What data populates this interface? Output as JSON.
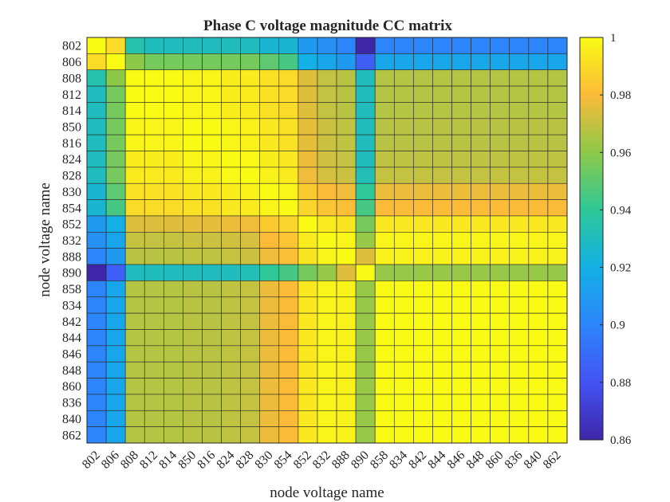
{
  "chart_data": {
    "type": "heatmap",
    "title": "Phase C voltage magnitude CC matrix",
    "xlabel": "node voltage name",
    "ylabel": "node voltage name",
    "labels": [
      "802",
      "806",
      "808",
      "812",
      "814",
      "850",
      "816",
      "824",
      "828",
      "830",
      "854",
      "852",
      "832",
      "888",
      "890",
      "858",
      "834",
      "842",
      "844",
      "846",
      "848",
      "860",
      "836",
      "840",
      "862"
    ],
    "colorbar": {
      "min": 0.86,
      "max": 1,
      "ticks": [
        "0.86",
        "0.88",
        "0.9",
        "0.92",
        "0.94",
        "0.96",
        "0.98",
        "1"
      ]
    },
    "colormap": "parula",
    "values": [
      [
        1,
        0.99,
        0.935,
        0.93,
        0.93,
        0.93,
        0.93,
        0.93,
        0.93,
        0.925,
        0.925,
        0.91,
        0.905,
        0.9,
        0.86,
        0.9,
        0.9,
        0.9,
        0.9,
        0.9,
        0.9,
        0.9,
        0.9,
        0.9,
        0.9
      ],
      [
        0.99,
        1,
        0.96,
        0.955,
        0.955,
        0.955,
        0.955,
        0.955,
        0.955,
        0.95,
        0.945,
        0.92,
        0.915,
        0.91,
        0.885,
        0.915,
        0.915,
        0.915,
        0.915,
        0.915,
        0.915,
        0.915,
        0.915,
        0.915,
        0.915
      ],
      [
        0.935,
        0.96,
        1,
        1,
        1,
        0.998,
        0.998,
        0.996,
        0.995,
        0.992,
        0.99,
        0.975,
        0.97,
        0.968,
        0.93,
        0.967,
        0.967,
        0.967,
        0.967,
        0.967,
        0.967,
        0.967,
        0.967,
        0.967,
        0.967
      ],
      [
        0.93,
        0.955,
        1,
        1,
        1,
        0.998,
        0.998,
        0.996,
        0.995,
        0.992,
        0.99,
        0.975,
        0.97,
        0.968,
        0.93,
        0.967,
        0.967,
        0.967,
        0.967,
        0.967,
        0.967,
        0.967,
        0.967,
        0.967,
        0.967
      ],
      [
        0.93,
        0.955,
        1,
        1,
        1,
        0.998,
        0.998,
        0.996,
        0.995,
        0.992,
        0.99,
        0.975,
        0.97,
        0.968,
        0.93,
        0.967,
        0.967,
        0.967,
        0.967,
        0.967,
        0.967,
        0.967,
        0.967,
        0.967,
        0.967
      ],
      [
        0.93,
        0.955,
        0.998,
        0.998,
        0.998,
        1,
        1,
        0.998,
        0.997,
        0.994,
        0.992,
        0.976,
        0.971,
        0.969,
        0.93,
        0.968,
        0.968,
        0.968,
        0.968,
        0.968,
        0.968,
        0.968,
        0.968,
        0.968,
        0.968
      ],
      [
        0.93,
        0.955,
        0.998,
        0.998,
        0.998,
        1,
        1,
        0.998,
        0.997,
        0.994,
        0.992,
        0.976,
        0.971,
        0.969,
        0.93,
        0.968,
        0.968,
        0.968,
        0.968,
        0.968,
        0.968,
        0.968,
        0.968,
        0.968,
        0.968
      ],
      [
        0.93,
        0.955,
        0.996,
        0.996,
        0.996,
        0.998,
        0.998,
        1,
        0.999,
        0.996,
        0.994,
        0.977,
        0.972,
        0.97,
        0.93,
        0.969,
        0.969,
        0.969,
        0.969,
        0.969,
        0.969,
        0.969,
        0.969,
        0.969,
        0.969
      ],
      [
        0.93,
        0.955,
        0.995,
        0.995,
        0.995,
        0.997,
        0.997,
        0.999,
        1,
        0.997,
        0.995,
        0.978,
        0.973,
        0.971,
        0.932,
        0.97,
        0.97,
        0.97,
        0.97,
        0.97,
        0.97,
        0.97,
        0.97,
        0.97,
        0.97
      ],
      [
        0.925,
        0.95,
        0.992,
        0.992,
        0.992,
        0.994,
        0.994,
        0.996,
        0.997,
        1,
        0.998,
        0.985,
        0.98,
        0.978,
        0.94,
        0.977,
        0.977,
        0.977,
        0.977,
        0.977,
        0.977,
        0.977,
        0.977,
        0.977,
        0.977
      ],
      [
        0.925,
        0.945,
        0.99,
        0.99,
        0.99,
        0.992,
        0.992,
        0.994,
        0.995,
        0.998,
        1,
        0.988,
        0.983,
        0.981,
        0.945,
        0.98,
        0.98,
        0.98,
        0.98,
        0.98,
        0.98,
        0.98,
        0.98,
        0.98,
        0.98
      ],
      [
        0.91,
        0.92,
        0.975,
        0.975,
        0.975,
        0.976,
        0.976,
        0.977,
        0.978,
        0.985,
        0.988,
        1,
        0.995,
        0.993,
        0.955,
        0.994,
        0.994,
        0.994,
        0.994,
        0.994,
        0.994,
        0.994,
        0.994,
        0.994,
        0.994
      ],
      [
        0.905,
        0.915,
        0.97,
        0.97,
        0.97,
        0.971,
        0.971,
        0.972,
        0.973,
        0.98,
        0.983,
        0.995,
        1,
        0.998,
        0.962,
        0.998,
        0.998,
        0.998,
        0.998,
        0.998,
        0.998,
        0.998,
        0.998,
        0.998,
        0.998
      ],
      [
        0.9,
        0.91,
        0.968,
        0.968,
        0.968,
        0.969,
        0.969,
        0.97,
        0.971,
        0.978,
        0.981,
        0.993,
        0.998,
        1,
        0.975,
        0.997,
        0.997,
        0.997,
        0.997,
        0.997,
        0.997,
        0.997,
        0.997,
        0.997,
        0.997
      ],
      [
        0.86,
        0.885,
        0.93,
        0.93,
        0.93,
        0.93,
        0.93,
        0.93,
        0.932,
        0.94,
        0.945,
        0.955,
        0.962,
        0.975,
        1,
        0.962,
        0.962,
        0.962,
        0.962,
        0.962,
        0.962,
        0.962,
        0.962,
        0.962,
        0.962
      ],
      [
        0.9,
        0.915,
        0.967,
        0.967,
        0.967,
        0.968,
        0.968,
        0.969,
        0.97,
        0.977,
        0.98,
        0.994,
        0.998,
        0.997,
        0.962,
        1,
        1,
        1,
        1,
        1,
        1,
        1,
        1,
        1,
        1
      ],
      [
        0.9,
        0.915,
        0.967,
        0.967,
        0.967,
        0.968,
        0.968,
        0.969,
        0.97,
        0.977,
        0.98,
        0.994,
        0.998,
        0.997,
        0.962,
        1,
        1,
        1,
        1,
        1,
        1,
        1,
        1,
        1,
        1
      ],
      [
        0.9,
        0.915,
        0.967,
        0.967,
        0.967,
        0.968,
        0.968,
        0.969,
        0.97,
        0.977,
        0.98,
        0.994,
        0.998,
        0.997,
        0.962,
        1,
        1,
        1,
        1,
        1,
        1,
        1,
        1,
        1,
        1
      ],
      [
        0.9,
        0.915,
        0.967,
        0.967,
        0.967,
        0.968,
        0.968,
        0.969,
        0.97,
        0.977,
        0.98,
        0.994,
        0.998,
        0.997,
        0.962,
        1,
        1,
        1,
        1,
        1,
        1,
        1,
        1,
        1,
        1
      ],
      [
        0.9,
        0.915,
        0.967,
        0.967,
        0.967,
        0.968,
        0.968,
        0.969,
        0.97,
        0.977,
        0.98,
        0.994,
        0.998,
        0.997,
        0.962,
        1,
        1,
        1,
        1,
        1,
        1,
        1,
        1,
        1,
        1
      ],
      [
        0.9,
        0.915,
        0.967,
        0.967,
        0.967,
        0.968,
        0.968,
        0.969,
        0.97,
        0.977,
        0.98,
        0.994,
        0.998,
        0.997,
        0.962,
        1,
        1,
        1,
        1,
        1,
        1,
        1,
        1,
        1,
        1
      ],
      [
        0.9,
        0.915,
        0.967,
        0.967,
        0.967,
        0.968,
        0.968,
        0.969,
        0.97,
        0.977,
        0.98,
        0.994,
        0.998,
        0.997,
        0.962,
        1,
        1,
        1,
        1,
        1,
        1,
        1,
        1,
        1,
        1
      ],
      [
        0.9,
        0.915,
        0.967,
        0.967,
        0.967,
        0.968,
        0.968,
        0.969,
        0.97,
        0.977,
        0.98,
        0.994,
        0.998,
        0.997,
        0.962,
        1,
        1,
        1,
        1,
        1,
        1,
        1,
        1,
        1,
        1
      ],
      [
        0.9,
        0.915,
        0.967,
        0.967,
        0.967,
        0.968,
        0.968,
        0.969,
        0.97,
        0.977,
        0.98,
        0.994,
        0.998,
        0.997,
        0.962,
        1,
        1,
        1,
        1,
        1,
        1,
        1,
        1,
        1,
        1
      ],
      [
        0.9,
        0.915,
        0.967,
        0.967,
        0.967,
        0.968,
        0.968,
        0.969,
        0.97,
        0.977,
        0.98,
        0.994,
        0.998,
        0.997,
        0.962,
        1,
        1,
        1,
        1,
        1,
        1,
        1,
        1,
        1,
        1
      ]
    ]
  }
}
